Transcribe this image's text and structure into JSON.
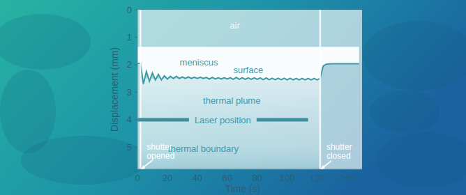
{
  "chart_data": {
    "type": "line",
    "x_label": "Time (s)",
    "y_label": "Displacement (mm)",
    "xlim": [
      0,
      150
    ],
    "xticks": [
      0,
      20,
      40,
      60,
      80,
      100,
      120,
      140
    ],
    "ylim": [
      5.8,
      0
    ],
    "yticks": [
      0,
      1,
      2,
      3,
      4,
      5
    ],
    "meniscus_top": 1.35,
    "series": [
      {
        "color": "#3f9aa6",
        "x": [
          0,
          2,
          4,
          6,
          8,
          10,
          12,
          14,
          16,
          18,
          20,
          22,
          24,
          26,
          28,
          30,
          32,
          34,
          36,
          38,
          40,
          42,
          44,
          46,
          48,
          50,
          52,
          54,
          56,
          58,
          60,
          62,
          64,
          66,
          68,
          70,
          72,
          74,
          76,
          78,
          80,
          82,
          84,
          86,
          88,
          90,
          92,
          94,
          96,
          98,
          100,
          102,
          104,
          106,
          108,
          110,
          112,
          114,
          116,
          118,
          120,
          122,
          124,
          126,
          128,
          130,
          132,
          134,
          136,
          138,
          140,
          142,
          144,
          146,
          148
        ],
        "values": [
          1.95,
          1.95,
          2.7,
          2.25,
          2.6,
          2.3,
          2.55,
          2.35,
          2.55,
          2.4,
          2.52,
          2.42,
          2.5,
          2.42,
          2.5,
          2.44,
          2.5,
          2.44,
          2.5,
          2.45,
          2.5,
          2.45,
          2.5,
          2.46,
          2.52,
          2.46,
          2.52,
          2.47,
          2.52,
          2.47,
          2.52,
          2.47,
          2.53,
          2.46,
          2.53,
          2.47,
          2.53,
          2.48,
          2.53,
          2.48,
          2.53,
          2.48,
          2.54,
          2.48,
          2.54,
          2.49,
          2.54,
          2.49,
          2.54,
          2.49,
          2.55,
          2.49,
          2.55,
          2.5,
          2.55,
          2.5,
          2.55,
          2.5,
          2.55,
          2.5,
          2.55,
          2.5,
          2.05,
          1.98,
          1.97,
          1.96,
          1.96,
          1.96,
          1.96,
          1.96,
          1.96,
          1.96,
          1.96,
          1.96,
          1.96
        ]
      }
    ],
    "laser": {
      "y": 4,
      "x": [
        0,
        114
      ],
      "label": "Laser position"
    },
    "annotations": [
      {
        "text": "air",
        "x": 65,
        "y": 0.55
      },
      {
        "text": "meniscus",
        "x": 41,
        "y": 1.9
      },
      {
        "text": "surface",
        "x": 74,
        "y": 2.18
      },
      {
        "text": "thermal plume",
        "x": 63,
        "y": 3.3
      },
      {
        "text": "thermal boundary",
        "x": 44,
        "y": 5.05
      }
    ],
    "events": [
      {
        "x": 2,
        "label": [
          "shutter",
          "opened"
        ]
      },
      {
        "x": 122,
        "label": [
          "shutter",
          "closed"
        ]
      }
    ]
  }
}
